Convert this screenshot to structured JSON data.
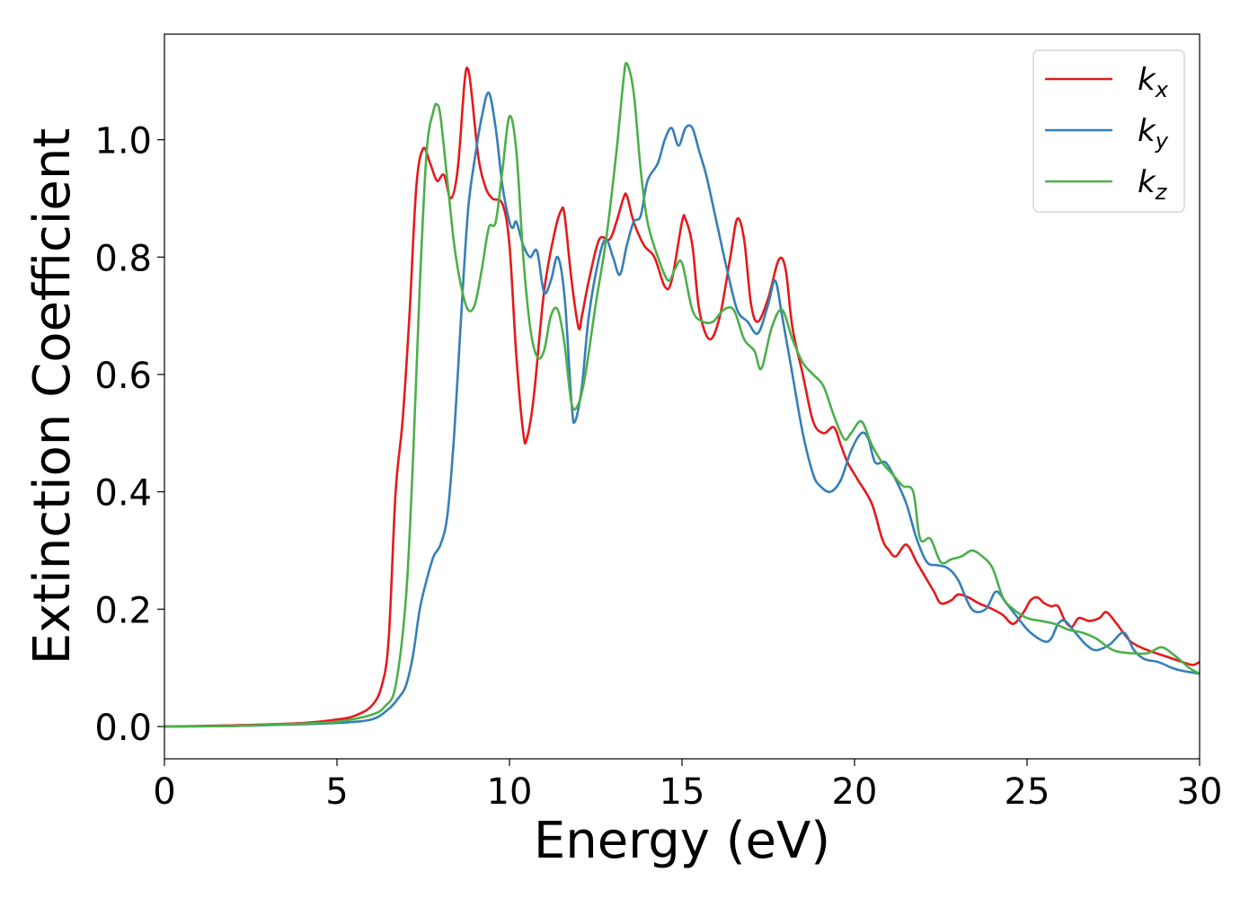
{
  "chart_data": {
    "type": "line",
    "title": "",
    "xlabel": "Energy (eV)",
    "ylabel": "Extinction Coefficient",
    "xlim": [
      0,
      30
    ],
    "ylim": [
      -0.055,
      1.18
    ],
    "xticks": [
      0,
      5,
      10,
      15,
      20,
      25,
      30
    ],
    "yticks": [
      0.0,
      0.2,
      0.4,
      0.6,
      0.8,
      1.0
    ],
    "xtick_labels": [
      "0",
      "5",
      "10",
      "15",
      "20",
      "25",
      "30"
    ],
    "ytick_labels": [
      "0.0",
      "0.2",
      "0.4",
      "0.6",
      "0.8",
      "1.0"
    ],
    "grid": false,
    "legend_position": "top-right",
    "series": [
      {
        "name": "k_x",
        "legend_base": "k",
        "legend_sub": "x",
        "color": "#e41a1c",
        "x": [
          0,
          2,
          4,
          5,
          5.5,
          6,
          6.3,
          6.5,
          6.7,
          6.9,
          7.1,
          7.3,
          7.5,
          7.7,
          7.9,
          8.1,
          8.3,
          8.5,
          8.7,
          8.8,
          8.9,
          9.1,
          9.3,
          9.5,
          9.8,
          10.0,
          10.2,
          10.4,
          10.5,
          10.7,
          11.0,
          11.3,
          11.5,
          11.6,
          11.8,
          12.0,
          12.1,
          12.3,
          12.6,
          12.9,
          13.1,
          13.3,
          13.4,
          13.6,
          13.9,
          14.2,
          14.5,
          14.7,
          15.0,
          15.1,
          15.3,
          15.5,
          15.8,
          16.1,
          16.4,
          16.6,
          16.8,
          17.0,
          17.2,
          17.5,
          17.8,
          18.0,
          18.2,
          18.5,
          18.8,
          19.1,
          19.4,
          19.6,
          19.8,
          20.1,
          20.5,
          20.8,
          21.0,
          21.2,
          21.5,
          21.8,
          22.0,
          22.3,
          22.5,
          22.8,
          23.0,
          23.3,
          23.6,
          24.0,
          24.3,
          24.6,
          24.9,
          25.1,
          25.3,
          25.5,
          25.7,
          25.9,
          26.1,
          26.3,
          26.5,
          26.8,
          27.1,
          27.3,
          27.6,
          28.0,
          28.5,
          29.0,
          29.5,
          29.8,
          30
        ],
        "y": [
          0.0,
          0.002,
          0.006,
          0.012,
          0.018,
          0.035,
          0.07,
          0.15,
          0.4,
          0.52,
          0.7,
          0.92,
          0.985,
          0.96,
          0.93,
          0.94,
          0.9,
          0.95,
          1.1,
          1.12,
          1.08,
          0.97,
          0.92,
          0.9,
          0.89,
          0.82,
          0.63,
          0.5,
          0.49,
          0.56,
          0.74,
          0.84,
          0.88,
          0.87,
          0.76,
          0.68,
          0.7,
          0.76,
          0.83,
          0.83,
          0.86,
          0.9,
          0.905,
          0.86,
          0.82,
          0.8,
          0.75,
          0.76,
          0.86,
          0.865,
          0.82,
          0.71,
          0.66,
          0.7,
          0.8,
          0.865,
          0.83,
          0.72,
          0.69,
          0.73,
          0.795,
          0.78,
          0.68,
          0.6,
          0.52,
          0.5,
          0.51,
          0.48,
          0.45,
          0.42,
          0.38,
          0.32,
          0.3,
          0.29,
          0.31,
          0.28,
          0.26,
          0.23,
          0.21,
          0.215,
          0.225,
          0.22,
          0.21,
          0.2,
          0.19,
          0.175,
          0.195,
          0.215,
          0.22,
          0.21,
          0.205,
          0.205,
          0.18,
          0.17,
          0.185,
          0.18,
          0.185,
          0.195,
          0.175,
          0.145,
          0.13,
          0.12,
          0.11,
          0.105,
          0.11
        ]
      },
      {
        "name": "k_y",
        "legend_base": "k",
        "legend_sub": "y",
        "color": "#377eb8",
        "x": [
          0,
          2,
          4,
          5,
          6,
          6.5,
          6.8,
          7.0,
          7.2,
          7.4,
          7.6,
          7.8,
          8.0,
          8.2,
          8.4,
          8.6,
          8.8,
          9.0,
          9.2,
          9.4,
          9.6,
          9.8,
          10.0,
          10.1,
          10.2,
          10.4,
          10.6,
          10.8,
          11.0,
          11.2,
          11.4,
          11.6,
          11.8,
          11.9,
          12.1,
          12.3,
          12.6,
          12.8,
          13.0,
          13.2,
          13.4,
          13.6,
          13.8,
          14.0,
          14.3,
          14.5,
          14.7,
          14.9,
          15.1,
          15.3,
          15.5,
          15.7,
          16.0,
          16.3,
          16.6,
          16.9,
          17.2,
          17.5,
          17.7,
          17.9,
          18.2,
          18.5,
          18.8,
          19.0,
          19.3,
          19.6,
          19.9,
          20.2,
          20.4,
          20.6,
          20.9,
          21.2,
          21.5,
          21.8,
          22.1,
          22.4,
          22.7,
          23.0,
          23.4,
          23.8,
          24.1,
          24.4,
          24.8,
          25.1,
          25.5,
          25.7,
          25.9,
          26.1,
          26.4,
          26.7,
          27.0,
          27.4,
          27.8,
          28.1,
          28.4,
          28.8,
          29.2,
          29.5,
          30
        ],
        "y": [
          0.0,
          0.001,
          0.004,
          0.006,
          0.012,
          0.03,
          0.05,
          0.07,
          0.12,
          0.2,
          0.25,
          0.29,
          0.31,
          0.36,
          0.5,
          0.7,
          0.88,
          0.97,
          1.04,
          1.08,
          1.02,
          0.92,
          0.86,
          0.85,
          0.86,
          0.82,
          0.8,
          0.81,
          0.74,
          0.76,
          0.8,
          0.73,
          0.55,
          0.52,
          0.58,
          0.7,
          0.8,
          0.83,
          0.8,
          0.77,
          0.82,
          0.86,
          0.87,
          0.93,
          0.96,
          1.0,
          1.02,
          0.99,
          1.02,
          1.02,
          0.98,
          0.94,
          0.86,
          0.78,
          0.71,
          0.69,
          0.67,
          0.72,
          0.76,
          0.7,
          0.6,
          0.5,
          0.43,
          0.41,
          0.4,
          0.42,
          0.47,
          0.5,
          0.49,
          0.45,
          0.45,
          0.42,
          0.38,
          0.32,
          0.28,
          0.275,
          0.27,
          0.25,
          0.2,
          0.2,
          0.23,
          0.21,
          0.18,
          0.16,
          0.145,
          0.15,
          0.175,
          0.18,
          0.16,
          0.14,
          0.13,
          0.14,
          0.16,
          0.13,
          0.115,
          0.11,
          0.1,
          0.095,
          0.09
        ]
      },
      {
        "name": "k_z",
        "legend_base": "k",
        "legend_sub": "z",
        "color": "#4daf4a",
        "x": [
          0,
          2,
          4,
          5,
          6,
          6.4,
          6.7,
          7.0,
          7.2,
          7.4,
          7.6,
          7.8,
          7.9,
          8.0,
          8.2,
          8.4,
          8.6,
          8.8,
          9.0,
          9.2,
          9.4,
          9.6,
          9.8,
          10.0,
          10.2,
          10.4,
          10.6,
          10.8,
          11.0,
          11.2,
          11.4,
          11.6,
          11.8,
          12.0,
          12.2,
          12.5,
          12.8,
          13.1,
          13.3,
          13.4,
          13.6,
          13.8,
          14.0,
          14.3,
          14.6,
          14.8,
          15.0,
          15.3,
          15.6,
          15.9,
          16.2,
          16.5,
          16.8,
          17.1,
          17.3,
          17.6,
          17.9,
          18.2,
          18.5,
          18.8,
          19.1,
          19.4,
          19.7,
          19.9,
          20.2,
          20.5,
          20.8,
          21.1,
          21.4,
          21.7,
          21.9,
          22.2,
          22.5,
          22.8,
          23.1,
          23.4,
          23.7,
          24.0,
          24.3,
          24.6,
          25.0,
          25.4,
          25.8,
          26.2,
          26.6,
          27.0,
          27.5,
          28.0,
          28.5,
          28.9,
          29.3,
          29.7,
          30
        ],
        "y": [
          0.0,
          0.001,
          0.005,
          0.008,
          0.02,
          0.035,
          0.07,
          0.22,
          0.45,
          0.75,
          0.98,
          1.05,
          1.06,
          1.04,
          0.93,
          0.82,
          0.75,
          0.71,
          0.72,
          0.78,
          0.85,
          0.86,
          0.95,
          1.04,
          0.98,
          0.8,
          0.68,
          0.63,
          0.64,
          0.7,
          0.71,
          0.65,
          0.55,
          0.55,
          0.6,
          0.72,
          0.83,
          0.98,
          1.1,
          1.13,
          1.08,
          0.95,
          0.86,
          0.8,
          0.76,
          0.78,
          0.79,
          0.71,
          0.69,
          0.69,
          0.71,
          0.71,
          0.66,
          0.64,
          0.61,
          0.68,
          0.71,
          0.66,
          0.62,
          0.6,
          0.58,
          0.53,
          0.49,
          0.5,
          0.52,
          0.48,
          0.45,
          0.43,
          0.41,
          0.4,
          0.32,
          0.32,
          0.28,
          0.285,
          0.29,
          0.3,
          0.29,
          0.27,
          0.22,
          0.2,
          0.185,
          0.18,
          0.175,
          0.165,
          0.16,
          0.15,
          0.13,
          0.125,
          0.125,
          0.135,
          0.12,
          0.1,
          0.09
        ]
      }
    ]
  }
}
